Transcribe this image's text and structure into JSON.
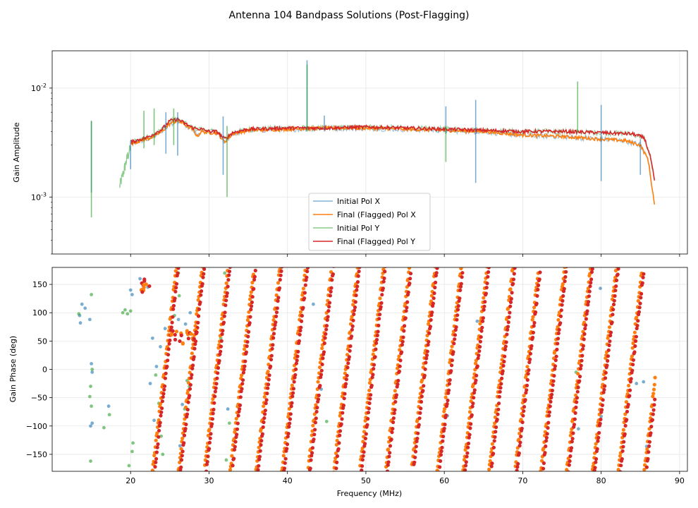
{
  "chart_data": {
    "type": "line",
    "title": "Antenna 104 Bandpass Solutions (Post-Flagging)",
    "xlabel": "Frequency (MHz)",
    "xlim": [
      10,
      91
    ],
    "xticks": [
      20,
      30,
      40,
      50,
      60,
      70,
      80,
      90
    ],
    "colors": {
      "init_x": "#1f77b4",
      "final_x": "#ff7f0e",
      "init_y": "#2ca02c",
      "final_y": "#d62728"
    },
    "legend": [
      "Initial Pol X",
      "Final (Flagged) Pol X",
      "Initial Pol Y",
      "Final (Flagged) Pol Y"
    ],
    "amplitude": {
      "ylabel": "Gain Amplitude",
      "scale": "log",
      "ylim": [
        0.0003,
        0.022
      ],
      "ytick_major_values": [
        0.001,
        0.01
      ],
      "ytick_exponents": [
        "-3",
        "-2"
      ],
      "ytick_base": "10",
      "final_x_knots": [
        [
          20,
          0.0031
        ],
        [
          22,
          0.0034
        ],
        [
          23,
          0.0036
        ],
        [
          24,
          0.004
        ],
        [
          25,
          0.0047
        ],
        [
          26,
          0.005
        ],
        [
          27,
          0.0046
        ],
        [
          28,
          0.0041
        ],
        [
          28.5,
          0.0036
        ],
        [
          29,
          0.004
        ],
        [
          30,
          0.0039
        ],
        [
          31,
          0.0039
        ],
        [
          32,
          0.0032
        ],
        [
          33,
          0.0038
        ],
        [
          35,
          0.0041
        ],
        [
          40,
          0.0042
        ],
        [
          45,
          0.0043
        ],
        [
          50,
          0.0043
        ],
        [
          55,
          0.0042
        ],
        [
          60,
          0.0041
        ],
        [
          65,
          0.004
        ],
        [
          70,
          0.0037
        ],
        [
          75,
          0.0036
        ],
        [
          80,
          0.0034
        ],
        [
          83,
          0.0033
        ],
        [
          85,
          0.003
        ],
        [
          86,
          0.0022
        ],
        [
          86.8,
          0.00085
        ]
      ],
      "final_y_knots": [
        [
          20,
          0.0032
        ],
        [
          22,
          0.0035
        ],
        [
          23,
          0.0038
        ],
        [
          24,
          0.0042
        ],
        [
          25,
          0.005
        ],
        [
          26,
          0.0052
        ],
        [
          27,
          0.0047
        ],
        [
          28,
          0.0043
        ],
        [
          29,
          0.0042
        ],
        [
          30,
          0.004
        ],
        [
          31,
          0.004
        ],
        [
          32,
          0.0034
        ],
        [
          33,
          0.0039
        ],
        [
          35,
          0.0042
        ],
        [
          40,
          0.0043
        ],
        [
          45,
          0.0043
        ],
        [
          50,
          0.0044
        ],
        [
          55,
          0.0043
        ],
        [
          60,
          0.0042
        ],
        [
          65,
          0.0041
        ],
        [
          70,
          0.004
        ],
        [
          75,
          0.004
        ],
        [
          80,
          0.0039
        ],
        [
          84,
          0.0038
        ],
        [
          85.5,
          0.0035
        ],
        [
          86.3,
          0.0023
        ],
        [
          86.8,
          0.0014
        ]
      ],
      "init_x_spikes": [
        [
          15,
          0.005,
          0.0011
        ],
        [
          20,
          0.0033,
          0.0018
        ],
        [
          24.5,
          0.006,
          0.0025
        ],
        [
          26,
          0.006,
          0.0024
        ],
        [
          31.8,
          0.0055,
          0.0016
        ],
        [
          42.5,
          0.018,
          0.004
        ],
        [
          44.7,
          0.0056,
          0.004
        ],
        [
          60.2,
          0.0068,
          0.0038
        ],
        [
          64,
          0.0078,
          0.00135
        ],
        [
          80,
          0.007,
          0.0014
        ],
        [
          85,
          0.0034,
          0.0016
        ]
      ],
      "init_y_spikes": [
        [
          15,
          0.005,
          0.00065
        ],
        [
          18.8,
          0.0012,
          0.0012
        ],
        [
          21.7,
          0.0062,
          0.0028
        ],
        [
          23,
          0.0065,
          0.003
        ],
        [
          25.5,
          0.0065,
          0.003
        ],
        [
          32.3,
          0.0045,
          0.001
        ],
        [
          42.5,
          0.0165,
          0.004
        ],
        [
          60.2,
          0.0045,
          0.0021
        ],
        [
          77,
          0.0115,
          0.0039
        ]
      ],
      "init_y_low_knots": [
        [
          18.6,
          0.00125
        ],
        [
          19,
          0.0016
        ],
        [
          19.5,
          0.0022
        ],
        [
          20,
          0.0029
        ]
      ]
    },
    "phase": {
      "ylabel": "Gain Phase (deg)",
      "ylim": [
        -180,
        180
      ],
      "yticks": [
        -150,
        -100,
        -50,
        0,
        50,
        100,
        150
      ],
      "wrap_start_x": 22.8,
      "wrap_period_mhz": 3.3,
      "final_y_offset_mhz": 0.25,
      "scatter_init_x": [
        [
          13.5,
          95
        ],
        [
          13.6,
          82
        ],
        [
          13.8,
          115
        ],
        [
          14.2,
          108
        ],
        [
          14.8,
          88
        ],
        [
          15.1,
          -5
        ],
        [
          15.0,
          10
        ],
        [
          14.9,
          -100
        ],
        [
          15.1,
          -95
        ],
        [
          17.2,
          -65
        ],
        [
          20.0,
          140
        ],
        [
          20.2,
          132
        ],
        [
          21.2,
          160
        ],
        [
          22.2,
          145
        ],
        [
          22.5,
          -25
        ],
        [
          22.8,
          55
        ],
        [
          23.0,
          -90
        ],
        [
          23.3,
          5
        ],
        [
          23.8,
          40
        ],
        [
          24.4,
          72
        ],
        [
          25.3,
          68
        ],
        [
          26.1,
          88
        ],
        [
          26.3,
          -135
        ],
        [
          26.6,
          -62
        ],
        [
          27.0,
          80
        ],
        [
          27.6,
          100
        ],
        [
          31.3,
          25
        ],
        [
          32.4,
          -70
        ],
        [
          44.3,
          -35
        ],
        [
          43.3,
          115
        ],
        [
          60.4,
          -82
        ],
        [
          64.2,
          85
        ],
        [
          77.1,
          -105
        ],
        [
          79.9,
          143
        ],
        [
          80.0,
          -83
        ],
        [
          84.5,
          -25
        ],
        [
          85.4,
          -22
        ],
        [
          85.8,
          -136
        ]
      ],
      "scatter_init_y": [
        [
          13.4,
          98
        ],
        [
          14.9,
          -30
        ],
        [
          15.0,
          132
        ],
        [
          15.1,
          0
        ],
        [
          14.8,
          -48
        ],
        [
          15.0,
          -65
        ],
        [
          14.9,
          -162
        ],
        [
          16.6,
          -103
        ],
        [
          17.3,
          -80
        ],
        [
          19.0,
          100
        ],
        [
          19.3,
          105
        ],
        [
          19.6,
          98
        ],
        [
          20.0,
          103
        ],
        [
          19.8,
          -170
        ],
        [
          20.2,
          -145
        ],
        [
          20.3,
          -130
        ],
        [
          23.2,
          -10
        ],
        [
          23.6,
          -60
        ],
        [
          23.9,
          -118
        ],
        [
          24.1,
          -150
        ],
        [
          25.2,
          70
        ],
        [
          25.6,
          95
        ],
        [
          26.1,
          170
        ],
        [
          26.2,
          130
        ],
        [
          26.4,
          -160
        ],
        [
          26.9,
          -70
        ],
        [
          27.2,
          -20
        ],
        [
          27.5,
          -30
        ],
        [
          31.5,
          55
        ],
        [
          31.8,
          80
        ],
        [
          32.0,
          170
        ],
        [
          32.2,
          -160
        ],
        [
          32.6,
          -95
        ],
        [
          45.0,
          -92
        ],
        [
          76.8,
          -5
        ]
      ]
    }
  }
}
